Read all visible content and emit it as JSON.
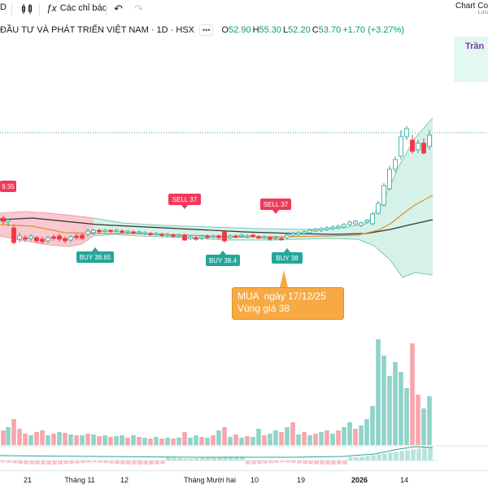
{
  "toolbar": {
    "left_partial": "D",
    "indicators_label": "Các chỉ báo"
  },
  "chart_corner": {
    "title": "Chart Co",
    "save": "Lưu"
  },
  "symbol": {
    "name": "ĐẦU TƯ VÀ PHÁT TRIỂN VIỆT NAM · 1D · HSX",
    "more": "•••",
    "ohlc": [
      {
        "label": "O",
        "value": "52.90"
      },
      {
        "label": "H",
        "value": "55.30"
      },
      {
        "label": "L",
        "value": "52.20"
      },
      {
        "label": "C",
        "value": "53.70"
      }
    ],
    "change": "+1.70 (+3.27%)"
  },
  "trend_label": "Trần",
  "signals": [
    {
      "text": "9.35",
      "color": "#f2395b"
    },
    {
      "text": "BUY 38.65",
      "color": "#26a69a"
    },
    {
      "text": "SELL 37",
      "color": "#f2395b"
    },
    {
      "text": "BUY 38.4",
      "color": "#26a69a"
    },
    {
      "text": "SELL 37",
      "color": "#f2395b"
    },
    {
      "text": "BUY 38",
      "color": "#26a69a"
    }
  ],
  "note": {
    "line1": "MUA  ngày 17/12/25",
    "line2": "Vùng giá 38"
  },
  "x_axis": [
    "21",
    "Tháng 11",
    "12",
    "Tháng Mười hai",
    "10",
    "19",
    "2026",
    "14"
  ],
  "colors": {
    "up": "#26a69a",
    "down": "#f23645",
    "up_volume": "#8fd3c9",
    "down_volume": "#f7a6ab"
  }
}
